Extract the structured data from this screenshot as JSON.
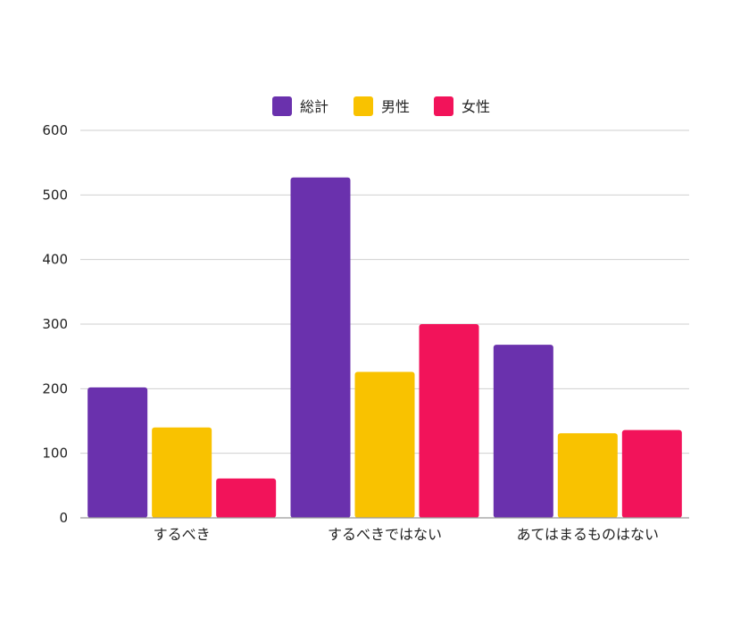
{
  "chart_data": {
    "type": "bar",
    "categories": [
      "するべき",
      "するべきではない",
      "あてはまるものはない"
    ],
    "series": [
      {
        "name": "総計",
        "color": "#6A31AD",
        "values": [
          202,
          527,
          268
        ]
      },
      {
        "name": "男性",
        "color": "#F9C200",
        "values": [
          140,
          226,
          131
        ]
      },
      {
        "name": "女性",
        "color": "#F2135A",
        "values": [
          61,
          300,
          136
        ]
      }
    ],
    "ylim": [
      0,
      600
    ],
    "yticks": [
      0,
      100,
      200,
      300,
      400,
      500,
      600
    ],
    "grid": true,
    "legend": "top-center",
    "title": "",
    "xlabel": "",
    "ylabel": ""
  }
}
